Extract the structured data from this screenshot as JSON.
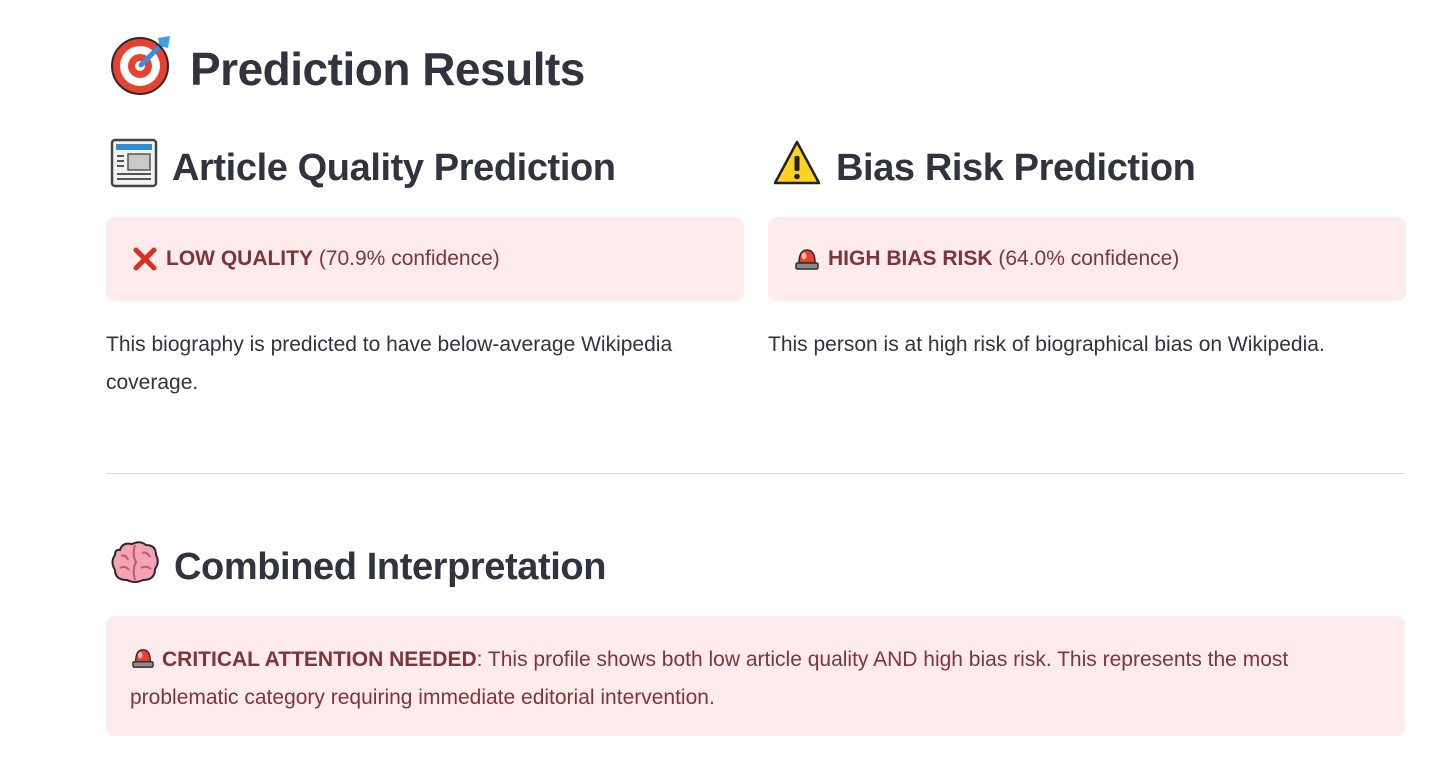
{
  "title": {
    "icon": "direct-hit-target-icon",
    "text": "Prediction Results"
  },
  "quality": {
    "heading_icon": "newspaper-icon",
    "heading": "Article Quality Prediction",
    "alert_icon": "cross-mark-icon",
    "label": "LOW QUALITY",
    "confidence_text": " (70.9% confidence)",
    "description": "This biography is predicted to have below-average Wikipedia coverage."
  },
  "bias": {
    "heading_icon": "warning-icon",
    "heading": "Bias Risk Prediction",
    "alert_icon": "rotating-light-icon",
    "label": "HIGH BIAS RISK",
    "confidence_text": " (64.0% confidence)",
    "description": "This person is at high risk of biographical bias on Wikipedia."
  },
  "combined": {
    "heading_icon": "brain-icon",
    "heading": "Combined Interpretation",
    "alert_icon": "rotating-light-icon",
    "label": "CRITICAL ATTENTION NEEDED",
    "message": ": This profile shows both low article quality AND high bias risk. This represents the most problematic category requiring immediate editorial intervention."
  },
  "colors": {
    "text": "#31333f",
    "error_bg": "#ffebeb",
    "error_text": "#7d353b",
    "divider": "#d9d9de"
  }
}
